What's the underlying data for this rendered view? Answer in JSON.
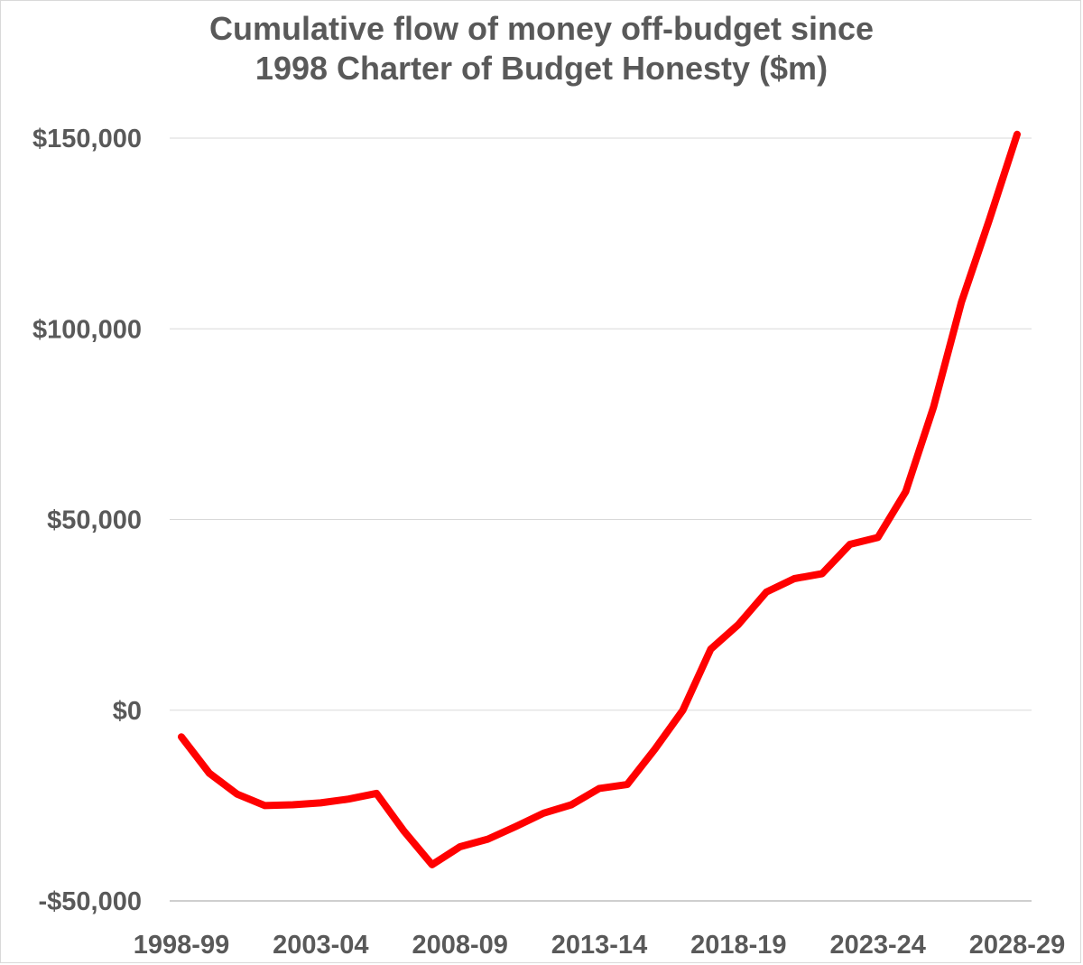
{
  "chart_data": {
    "type": "line",
    "title_lines": [
      "Cumulative flow of money off-budget since",
      "1998 Charter of Budget Honesty ($m)"
    ],
    "xlabel": "",
    "ylabel": "",
    "ylim": [
      -50000,
      150000
    ],
    "y_ticks": [
      -50000,
      0,
      50000,
      100000,
      150000
    ],
    "y_tick_labels": [
      "-$50,000",
      "$0",
      "$50,000",
      "$100,000",
      "$150,000"
    ],
    "x_tick_labels": [
      "1998-99",
      "2003-04",
      "2008-09",
      "2013-14",
      "2018-19",
      "2023-24",
      "2028-29"
    ],
    "x_tick_positions": [
      0,
      5,
      10,
      15,
      20,
      25,
      30
    ],
    "grid": true,
    "legend": "none",
    "series": [
      {
        "color": "#ff0000",
        "x": [
          "1998-99",
          "1999-00",
          "2000-01",
          "2001-02",
          "2002-03",
          "2003-04",
          "2004-05",
          "2005-06",
          "2006-07",
          "2007-08",
          "2008-09",
          "2009-10",
          "2010-11",
          "2011-12",
          "2012-13",
          "2013-14",
          "2014-15",
          "2015-16",
          "2016-17",
          "2017-18",
          "2018-19",
          "2019-20",
          "2020-21",
          "2021-22",
          "2022-23",
          "2023-24",
          "2024-25",
          "2025-26",
          "2026-27",
          "2027-28",
          "2028-29"
        ],
        "values": [
          -7000,
          -16500,
          -22000,
          -25000,
          -24800,
          -24300,
          -23300,
          -21800,
          -31800,
          -40500,
          -35800,
          -33800,
          -30500,
          -27000,
          -24800,
          -20500,
          -19500,
          -10200,
          0,
          16000,
          22500,
          31000,
          34500,
          35800,
          43500,
          45300,
          57300,
          79500,
          107000,
          128500,
          151000
        ]
      }
    ]
  }
}
